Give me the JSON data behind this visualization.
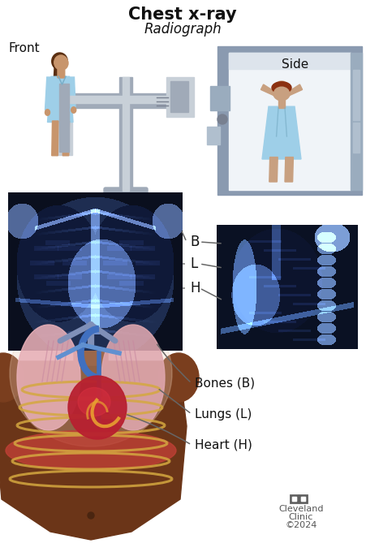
{
  "title": "Chest x-ray",
  "subtitle": "Radiograph",
  "title_fontsize": 15,
  "subtitle_fontsize": 12,
  "bg_color": "#ffffff",
  "label_B": "B",
  "label_L": "L",
  "label_H": "H",
  "label_bones": "Bones (B)",
  "label_lungs": "Lungs (L)",
  "label_heart": "Heart (H)",
  "label_front": "Front",
  "label_side": "Side",
  "label_clinic_1": "Cleveland",
  "label_clinic_2": "Clinic",
  "label_clinic_3": "©2024",
  "text_color": "#111111",
  "line_color": "#666666",
  "figure_width": 4.51,
  "figure_height": 6.8,
  "dpi": 100,
  "person_skin": "#c8956c",
  "person_skin_dark": "#7a4520",
  "person_gown": "#9ecfe8",
  "machine_gray": "#a0aab8",
  "machine_light": "#c8d0d8",
  "machine_dark": "#788090"
}
